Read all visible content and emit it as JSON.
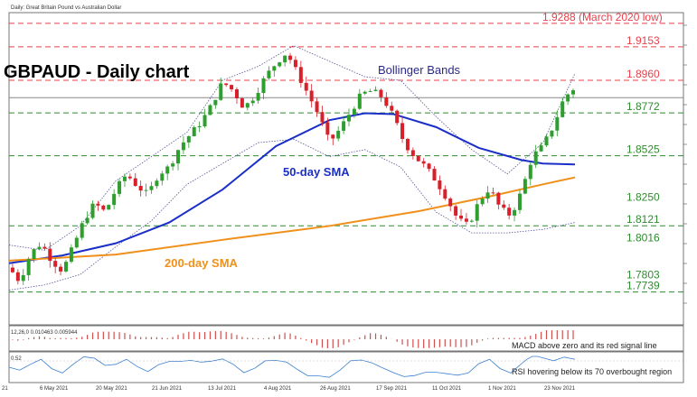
{
  "header": {
    "meta": "Daily:  Great Britain Pound vs Australian Dollar"
  },
  "chart_data": {
    "type": "line",
    "title": "GBPAUD - Daily chart",
    "x_ticks": [
      "6 May 2021",
      "20 May 2021",
      "21 Jun 2021",
      "13 Jul 2021",
      "4 Aug 2021",
      "26 Aug 2021",
      "17 Sep 2021",
      "11 Oct 2021",
      "1 Nov 2021",
      "23 Nov 2021"
    ],
    "x_first_label": "21",
    "ylim": [
      1.755,
      1.935
    ],
    "levels": [
      {
        "value": 1.9288,
        "label": "1.9288 (March 2020 low)",
        "color": "#e8404a",
        "style": "dashed"
      },
      {
        "value": 1.9153,
        "label": "1.9153",
        "color": "#e8404a",
        "style": "dashed"
      },
      {
        "value": 1.896,
        "label": "1.8960",
        "color": "#e8404a",
        "style": "dashed"
      },
      {
        "value": 1.886,
        "label": "",
        "color": "#888888",
        "style": "solid"
      },
      {
        "value": 1.8772,
        "label": "1.8772",
        "color": "#2e8b2e",
        "style": "dashed"
      },
      {
        "value": 1.8525,
        "label": "1.8525",
        "color": "#2e8b2e",
        "style": "dashed"
      },
      {
        "value": 1.825,
        "label": "1.8250",
        "color": "#2e8b2e",
        "style": "none"
      },
      {
        "value": 1.8121,
        "label": "1.8121",
        "color": "#2e8b2e",
        "style": "dashed"
      },
      {
        "value": 1.8016,
        "label": "1.8016",
        "color": "#2e8b2e",
        "style": "none"
      },
      {
        "value": 1.7803,
        "label": "1.7803",
        "color": "#2e8b2e",
        "style": "none"
      },
      {
        "value": 1.7739,
        "label": "1.7739",
        "color": "#2e8b2e",
        "style": "dashed"
      }
    ],
    "price_path": [
      [
        0,
        1.788
      ],
      [
        6,
        1.78
      ],
      [
        12,
        1.796
      ],
      [
        18,
        1.802
      ],
      [
        24,
        1.792
      ],
      [
        30,
        1.786
      ],
      [
        36,
        1.8
      ],
      [
        42,
        1.815
      ],
      [
        48,
        1.825
      ],
      [
        54,
        1.82
      ],
      [
        60,
        1.833
      ],
      [
        66,
        1.842
      ],
      [
        72,
        1.835
      ],
      [
        78,
        1.83
      ],
      [
        84,
        1.842
      ],
      [
        90,
        1.846
      ],
      [
        96,
        1.858
      ],
      [
        102,
        1.865
      ],
      [
        108,
        1.872
      ],
      [
        114,
        1.882
      ],
      [
        120,
        1.895
      ],
      [
        126,
        1.89
      ],
      [
        132,
        1.88
      ],
      [
        138,
        1.887
      ],
      [
        144,
        1.898
      ],
      [
        150,
        1.906
      ],
      [
        156,
        1.912
      ],
      [
        162,
        1.9
      ],
      [
        168,
        1.888
      ],
      [
        174,
        1.876
      ],
      [
        180,
        1.86
      ],
      [
        186,
        1.868
      ],
      [
        192,
        1.878
      ],
      [
        198,
        1.888
      ],
      [
        204,
        1.89
      ],
      [
        210,
        1.886
      ],
      [
        216,
        1.875
      ],
      [
        222,
        1.86
      ],
      [
        228,
        1.852
      ],
      [
        234,
        1.846
      ],
      [
        240,
        1.838
      ],
      [
        246,
        1.828
      ],
      [
        252,
        1.816
      ],
      [
        258,
        1.812
      ],
      [
        264,
        1.826
      ],
      [
        270,
        1.834
      ],
      [
        276,
        1.822
      ],
      [
        282,
        1.818
      ],
      [
        288,
        1.832
      ],
      [
        294,
        1.852
      ],
      [
        300,
        1.858
      ],
      [
        306,
        1.87
      ],
      [
        312,
        1.886
      ],
      [
        318,
        1.892
      ]
    ],
    "series": [
      {
        "name": "50-day SMA",
        "color": "#1a2ec8",
        "points": [
          [
            0,
            1.7905
          ],
          [
            30,
            1.795
          ],
          [
            60,
            1.802
          ],
          [
            90,
            1.814
          ],
          [
            120,
            1.833
          ],
          [
            150,
            1.858
          ],
          [
            180,
            1.873
          ],
          [
            200,
            1.877
          ],
          [
            216,
            1.8765
          ],
          [
            240,
            1.869
          ],
          [
            264,
            1.857
          ],
          [
            288,
            1.85
          ],
          [
            300,
            1.848
          ],
          [
            318,
            1.8475
          ]
        ]
      },
      {
        "name": "200-day SMA",
        "color": "#f0901a",
        "points": [
          [
            0,
            1.792
          ],
          [
            60,
            1.7955
          ],
          [
            120,
            1.804
          ],
          [
            180,
            1.812
          ],
          [
            230,
            1.8205
          ],
          [
            270,
            1.829
          ],
          [
            300,
            1.836
          ],
          [
            318,
            1.84
          ]
        ]
      }
    ],
    "bollinger": {
      "name": "Bollinger Bands",
      "color": "#555599",
      "upper": [
        [
          0,
          1.801
        ],
        [
          20,
          1.798
        ],
        [
          40,
          1.812
        ],
        [
          60,
          1.838
        ],
        [
          80,
          1.852
        ],
        [
          100,
          1.866
        ],
        [
          120,
          1.896
        ],
        [
          140,
          1.904
        ],
        [
          160,
          1.916
        ],
        [
          180,
          1.907
        ],
        [
          200,
          1.898
        ],
        [
          220,
          1.896
        ],
        [
          240,
          1.875
        ],
        [
          260,
          1.856
        ],
        [
          280,
          1.842
        ],
        [
          300,
          1.86
        ],
        [
          318,
          1.9
        ]
      ],
      "lower": [
        [
          0,
          1.775
        ],
        [
          20,
          1.778
        ],
        [
          40,
          1.784
        ],
        [
          60,
          1.8
        ],
        [
          80,
          1.815
        ],
        [
          100,
          1.836
        ],
        [
          120,
          1.848
        ],
        [
          140,
          1.86
        ],
        [
          160,
          1.862
        ],
        [
          180,
          1.852
        ],
        [
          200,
          1.856
        ],
        [
          220,
          1.846
        ],
        [
          240,
          1.82
        ],
        [
          260,
          1.808
        ],
        [
          280,
          1.808
        ],
        [
          300,
          1.81
        ],
        [
          318,
          1.814
        ]
      ]
    },
    "annotations": {
      "bollinger_label": "Bollinger Bands",
      "sma50_label": "50-day SMA",
      "sma200_label": "200-day SMA"
    },
    "macd": {
      "label": "12,26,0 0.010463 0.005944",
      "note": "MACD above zero and its red signal line"
    },
    "rsi": {
      "label": "0.52",
      "note": "RSI hovering below its 70 overbought region"
    }
  }
}
